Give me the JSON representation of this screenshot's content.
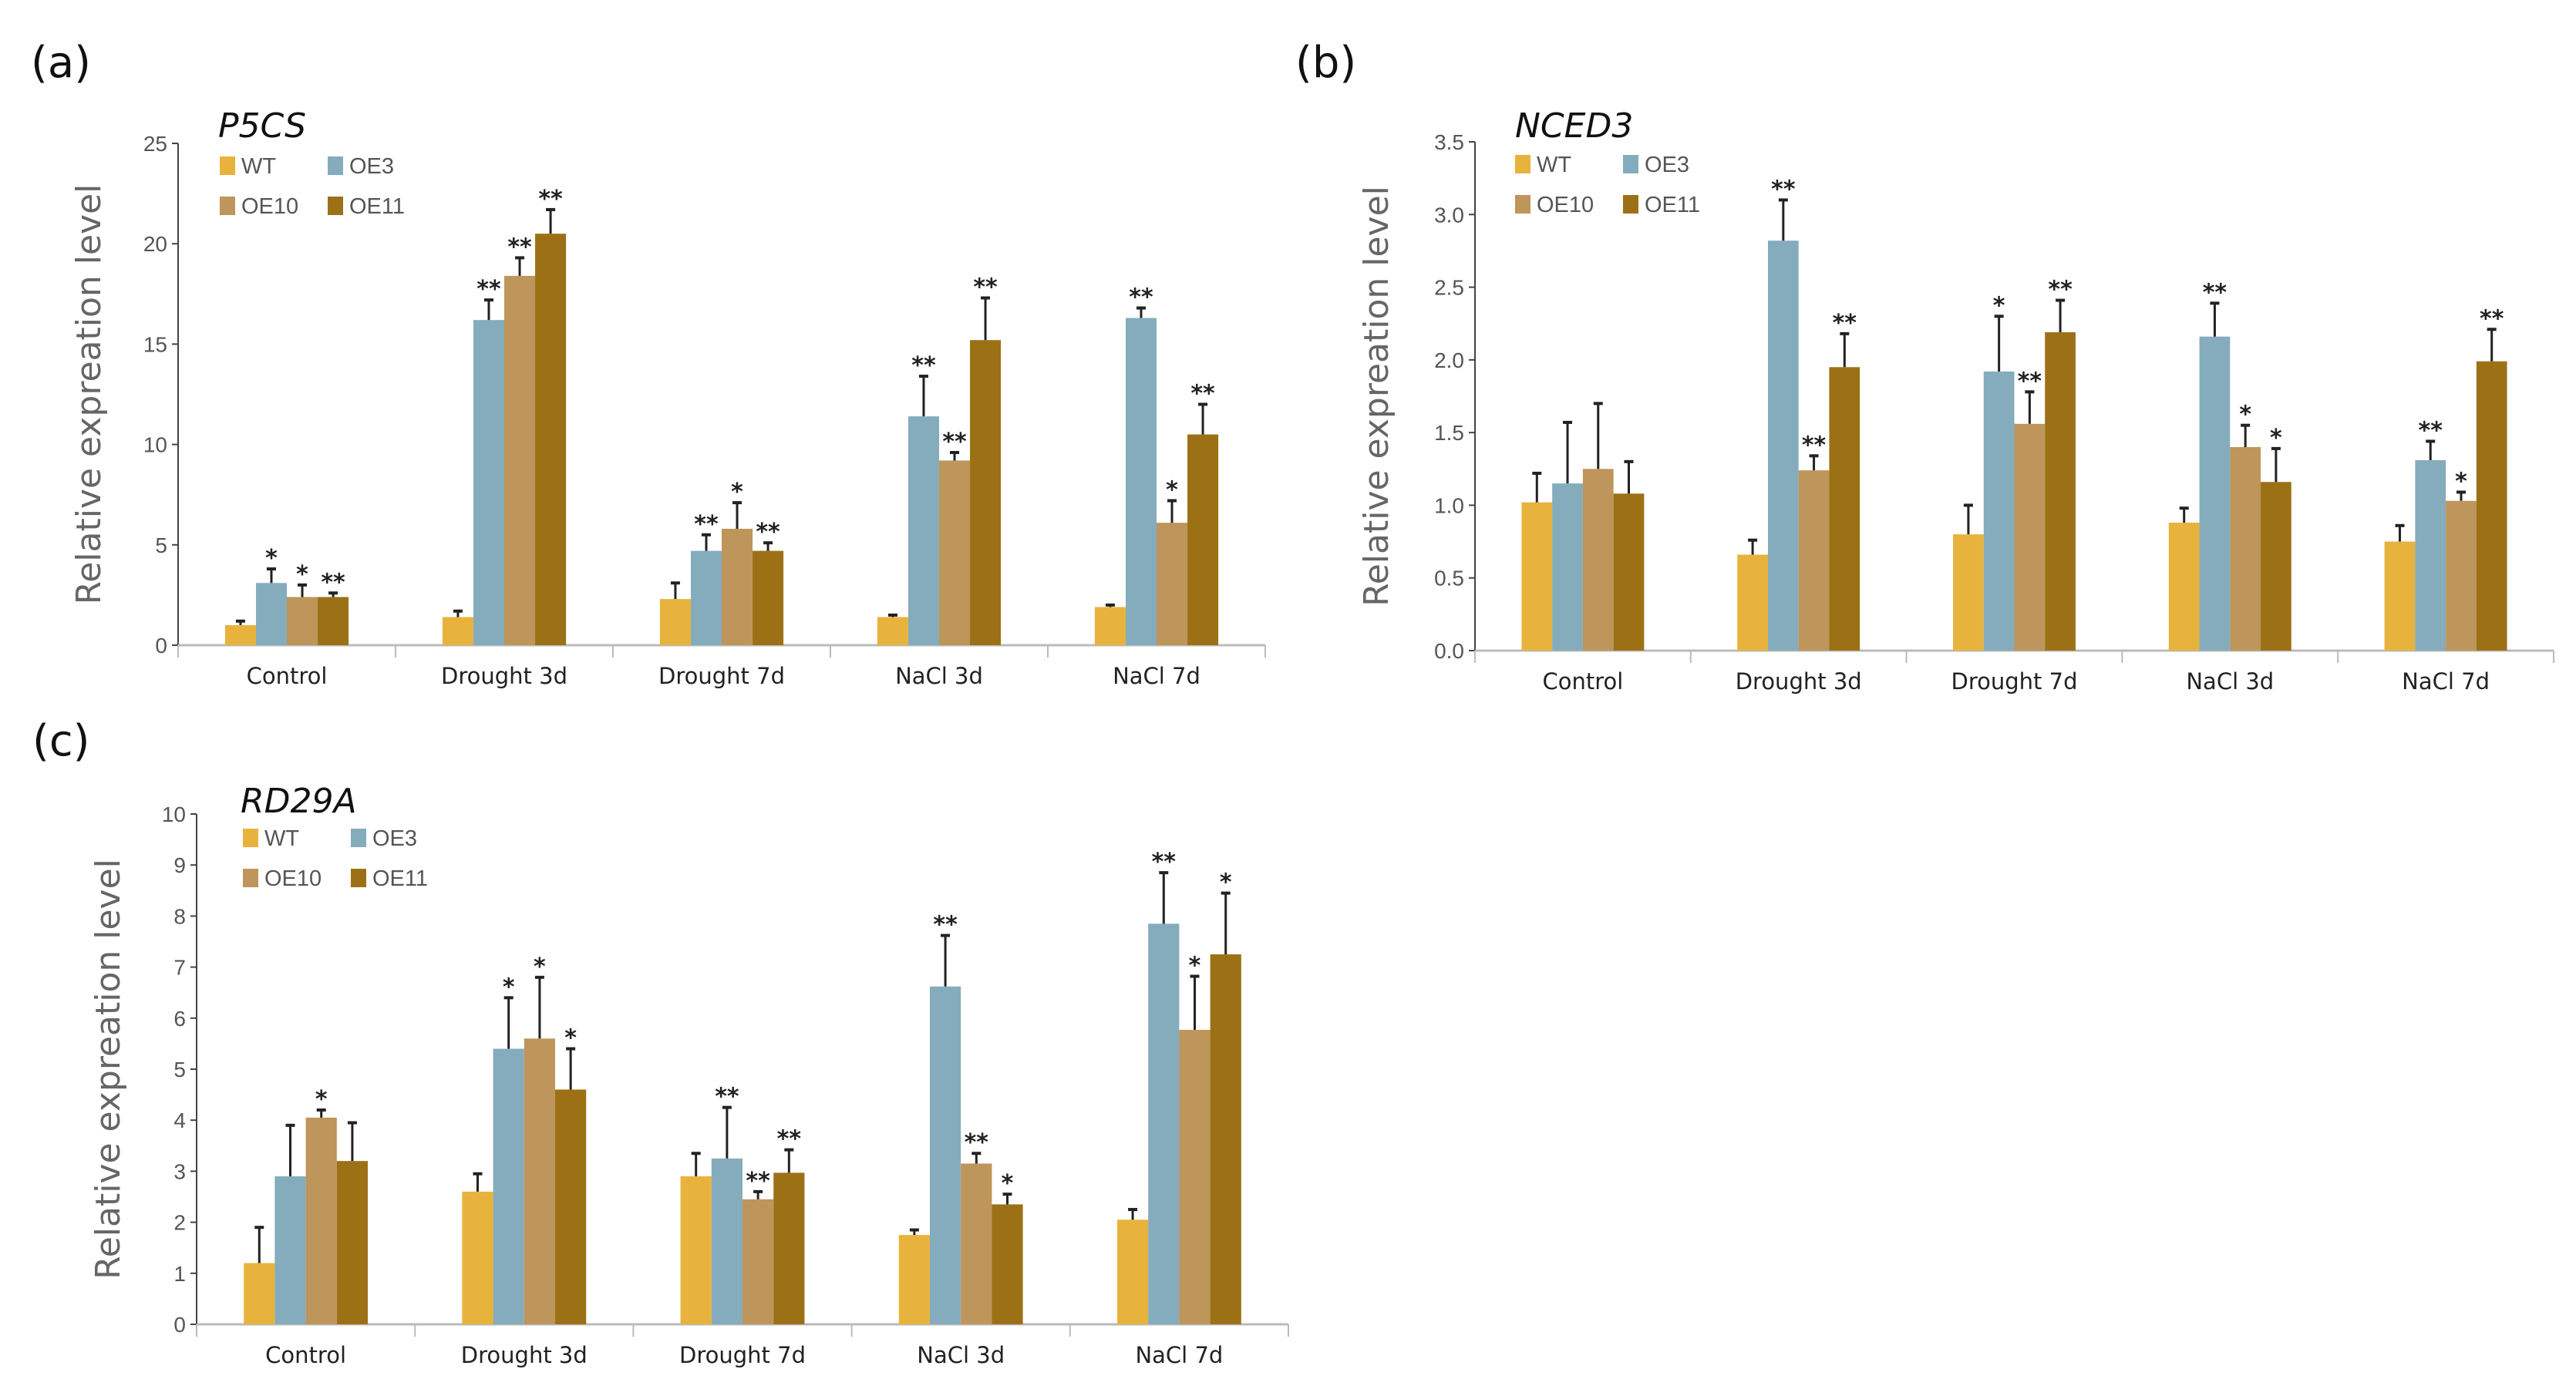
{
  "colors": {
    "WT": "#E8B33C",
    "OE3": "#85ACBC",
    "OE10": "#BE955A",
    "OE11": "#9C7116"
  },
  "chart_data": [
    {
      "type": "bar",
      "panel_label": "(a)",
      "title": "P5CS",
      "ylabel": "Relative expreation level",
      "xlabel": "",
      "ylim": [
        0,
        25
      ],
      "yticks": [
        "0",
        "5",
        "10",
        "15",
        "20",
        "25"
      ],
      "ytick_values": [
        0,
        5,
        10,
        15,
        20,
        25
      ],
      "legend": [
        "WT",
        "OE3",
        "OE10",
        "OE11"
      ],
      "legend_placement": "top-left",
      "categories": [
        "Control",
        "Drought 3d",
        "Drought 7d",
        "NaCl 3d",
        "NaCl 7d"
      ],
      "series": [
        {
          "name": "WT",
          "values": [
            1.0,
            1.4,
            2.3,
            1.4,
            1.9
          ],
          "errors": [
            0.2,
            0.3,
            0.8,
            0.1,
            0.1
          ],
          "sig": [
            "",
            "",
            "",
            "",
            ""
          ]
        },
        {
          "name": "OE3",
          "values": [
            3.1,
            16.2,
            4.7,
            11.4,
            16.3
          ],
          "errors": [
            0.7,
            1.0,
            0.8,
            2.0,
            0.5
          ],
          "sig": [
            "*",
            "**",
            "**",
            "**",
            "**"
          ]
        },
        {
          "name": "OE10",
          "values": [
            2.4,
            18.4,
            5.8,
            9.2,
            6.1
          ],
          "errors": [
            0.6,
            0.9,
            1.3,
            0.4,
            1.1
          ],
          "sig": [
            "*",
            "**",
            "*",
            "**",
            "*"
          ]
        },
        {
          "name": "OE11",
          "values": [
            2.4,
            20.5,
            4.7,
            15.2,
            10.5
          ],
          "errors": [
            0.2,
            1.2,
            0.4,
            2.1,
            1.5
          ],
          "sig": [
            "**",
            "**",
            "**",
            "**",
            "**"
          ]
        }
      ]
    },
    {
      "type": "bar",
      "panel_label": "(b)",
      "title": "NCED3",
      "ylabel": "Relative expreation level",
      "xlabel": "",
      "ylim": [
        0,
        3.5
      ],
      "yticks": [
        "0.0",
        "0.5",
        "1.0",
        "1.5",
        "2.0",
        "2.5",
        "3.0",
        "3.5"
      ],
      "ytick_values": [
        0,
        0.5,
        1.0,
        1.5,
        2.0,
        2.5,
        3.0,
        3.5
      ],
      "legend": [
        "WT",
        "OE3",
        "OE10",
        "OE11"
      ],
      "legend_placement": "top-left",
      "categories": [
        "Control",
        "Drought 3d",
        "Drought 7d",
        "NaCl 3d",
        "NaCl 7d"
      ],
      "series": [
        {
          "name": "WT",
          "values": [
            1.02,
            0.66,
            0.8,
            0.88,
            0.75
          ],
          "errors": [
            0.2,
            0.1,
            0.2,
            0.1,
            0.11
          ],
          "sig": [
            "",
            "",
            "",
            "",
            ""
          ]
        },
        {
          "name": "OE3",
          "values": [
            1.15,
            2.82,
            1.92,
            2.16,
            1.31
          ],
          "errors": [
            0.42,
            0.28,
            0.38,
            0.23,
            0.13
          ],
          "sig": [
            "",
            "**",
            "*",
            "**",
            "**"
          ]
        },
        {
          "name": "OE10",
          "values": [
            1.25,
            1.24,
            1.56,
            1.4,
            1.03
          ],
          "errors": [
            0.45,
            0.1,
            0.22,
            0.15,
            0.06
          ],
          "sig": [
            "",
            "**",
            "**",
            "*",
            "*"
          ]
        },
        {
          "name": "OE11",
          "values": [
            1.08,
            1.95,
            2.19,
            1.16,
            1.99
          ],
          "errors": [
            0.22,
            0.23,
            0.22,
            0.23,
            0.22
          ],
          "sig": [
            "",
            "**",
            "**",
            "*",
            "**"
          ]
        }
      ]
    },
    {
      "type": "bar",
      "panel_label": "(c)",
      "title": "RD29A",
      "ylabel": "Relative expreation level",
      "xlabel": "",
      "ylim": [
        0,
        10
      ],
      "yticks": [
        "0",
        "1",
        "2",
        "3",
        "4",
        "5",
        "6",
        "7",
        "8",
        "9",
        "10"
      ],
      "ytick_values": [
        0,
        1,
        2,
        3,
        4,
        5,
        6,
        7,
        8,
        9,
        10
      ],
      "legend": [
        "WT",
        "OE3",
        "OE10",
        "OE11"
      ],
      "legend_placement": "top-left",
      "categories": [
        "Control",
        "Drought 3d",
        "Drought 7d",
        "NaCl 3d",
        "NaCl 7d"
      ],
      "series": [
        {
          "name": "WT",
          "values": [
            1.2,
            2.6,
            2.9,
            1.75,
            2.05
          ],
          "errors": [
            0.7,
            0.35,
            0.45,
            0.1,
            0.2
          ],
          "sig": [
            "",
            "",
            "",
            "",
            ""
          ]
        },
        {
          "name": "OE3",
          "values": [
            2.9,
            5.4,
            3.25,
            6.62,
            7.85
          ],
          "errors": [
            1.0,
            1.0,
            1.0,
            1.0,
            1.0
          ],
          "sig": [
            "",
            "*",
            "**",
            "**",
            "**"
          ]
        },
        {
          "name": "OE10",
          "values": [
            4.05,
            5.6,
            2.45,
            3.15,
            5.77
          ],
          "errors": [
            0.15,
            1.2,
            0.15,
            0.2,
            1.05
          ],
          "sig": [
            "*",
            "*",
            "**",
            "**",
            "*"
          ]
        },
        {
          "name": "OE11",
          "values": [
            3.2,
            4.6,
            2.97,
            2.35,
            7.25
          ],
          "errors": [
            0.75,
            0.8,
            0.45,
            0.2,
            1.2
          ],
          "sig": [
            "",
            "*",
            "**",
            "*",
            "*"
          ]
        }
      ]
    }
  ]
}
